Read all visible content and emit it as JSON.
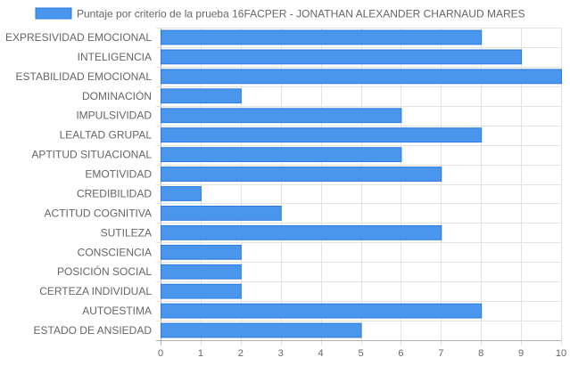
{
  "chart_data": {
    "type": "bar",
    "orientation": "horizontal",
    "title": "",
    "xlabel": "",
    "ylabel": "",
    "xlim": [
      0,
      10
    ],
    "x_ticks": [
      "0",
      "1",
      "2",
      "3",
      "4",
      "5",
      "6",
      "7",
      "8",
      "9",
      "10"
    ],
    "grid": true,
    "legend_position": "top",
    "categories": [
      "EXPRESIVIDAD EMOCIONAL",
      "INTELIGENCIA",
      "ESTABILIDAD EMOCIONAL",
      "DOMINACIÓN",
      "IMPULSIVIDAD",
      "LEALTAD GRUPAL",
      "APTITUD SITUACIONAL",
      "EMOTIVIDAD",
      "CREDIBILIDAD",
      "ACTITUD COGNITIVA",
      "SUTILEZA",
      "CONSCIENCIA",
      "POSICIÓN SOCIAL",
      "CERTEZA INDIVIDUAL",
      "AUTOESTIMA",
      "ESTADO DE ANSIEDAD"
    ],
    "series": [
      {
        "name": "Puntaje por criterio de la prueba 16FACPER - JONATHAN ALEXANDER CHARNAUD MARES",
        "color": "#4a96ec",
        "border_color": "#2a7ae2",
        "values": [
          8,
          9,
          10,
          2,
          6,
          8,
          6,
          7,
          1,
          3,
          7,
          2,
          2,
          2,
          8,
          5
        ]
      }
    ]
  }
}
